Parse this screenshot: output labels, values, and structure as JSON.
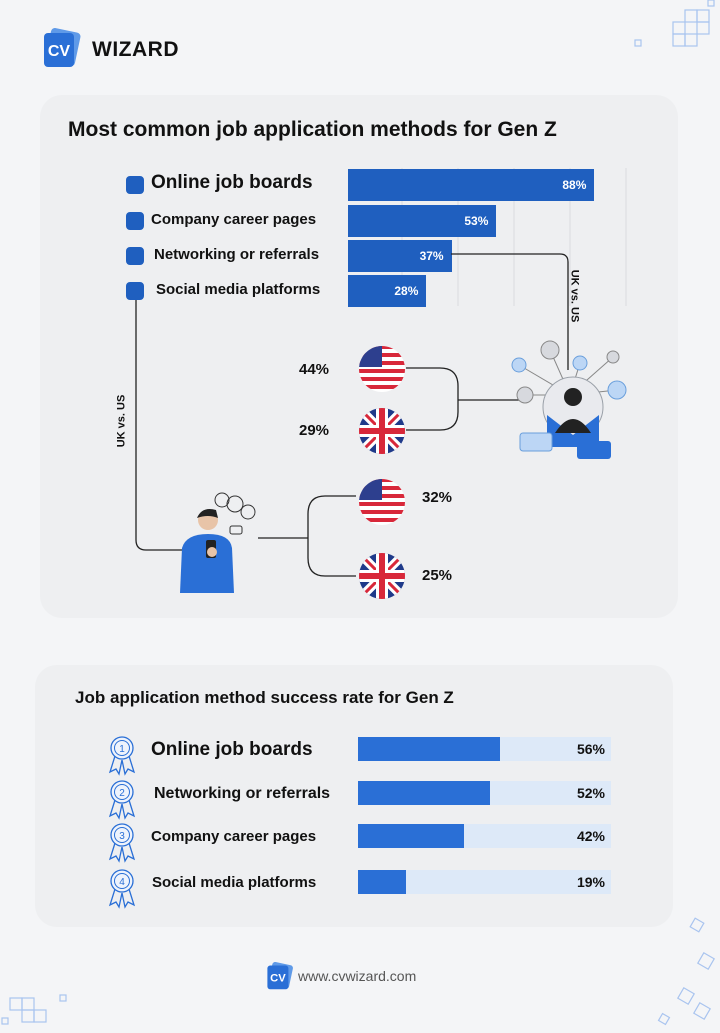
{
  "brand": {
    "badge": "CV",
    "name": "WIZARD",
    "website": "www.cvwizard.com"
  },
  "colors": {
    "accent": "#1f5fbf",
    "accent_light": "#2a6fd6",
    "track": "#dde9f8",
    "card": "#eeeff1",
    "background": "#f4f5f7"
  },
  "icons": [
    "cv-logo-icon",
    "us-flag-icon",
    "uk-flag-icon",
    "networking-person-illustration",
    "phone-person-illustration",
    "award-ribbon-icon",
    "decorative-grid-icon"
  ],
  "chart_data": [
    {
      "type": "bar",
      "title": "Most common job application methods for Gen Z",
      "categories": [
        "Online job boards",
        "Company career pages",
        "Networking or referrals",
        "Social media platforms"
      ],
      "values": [
        88,
        53,
        37,
        28
      ],
      "value_labels": [
        "88%",
        "53%",
        "37%",
        "28%"
      ],
      "xlim": [
        0,
        100
      ],
      "grid": true,
      "annotations": [
        {
          "label": "UK vs. US",
          "category": "Networking or referrals",
          "US": "44%",
          "UK": "29%"
        },
        {
          "label": "UK vs. US",
          "category": "Social media platforms",
          "US": "32%",
          "UK": "25%"
        }
      ]
    },
    {
      "type": "bar",
      "title": "Job application method success rate for Gen Z",
      "ranks": [
        "1",
        "2",
        "3",
        "4"
      ],
      "categories": [
        "Online job boards",
        "Networking or referrals",
        "Company career pages",
        "Social media platforms"
      ],
      "values": [
        56,
        52,
        42,
        19
      ],
      "value_labels": [
        "56%",
        "52%",
        "42%",
        "19%"
      ],
      "xlim": [
        0,
        100
      ]
    }
  ]
}
